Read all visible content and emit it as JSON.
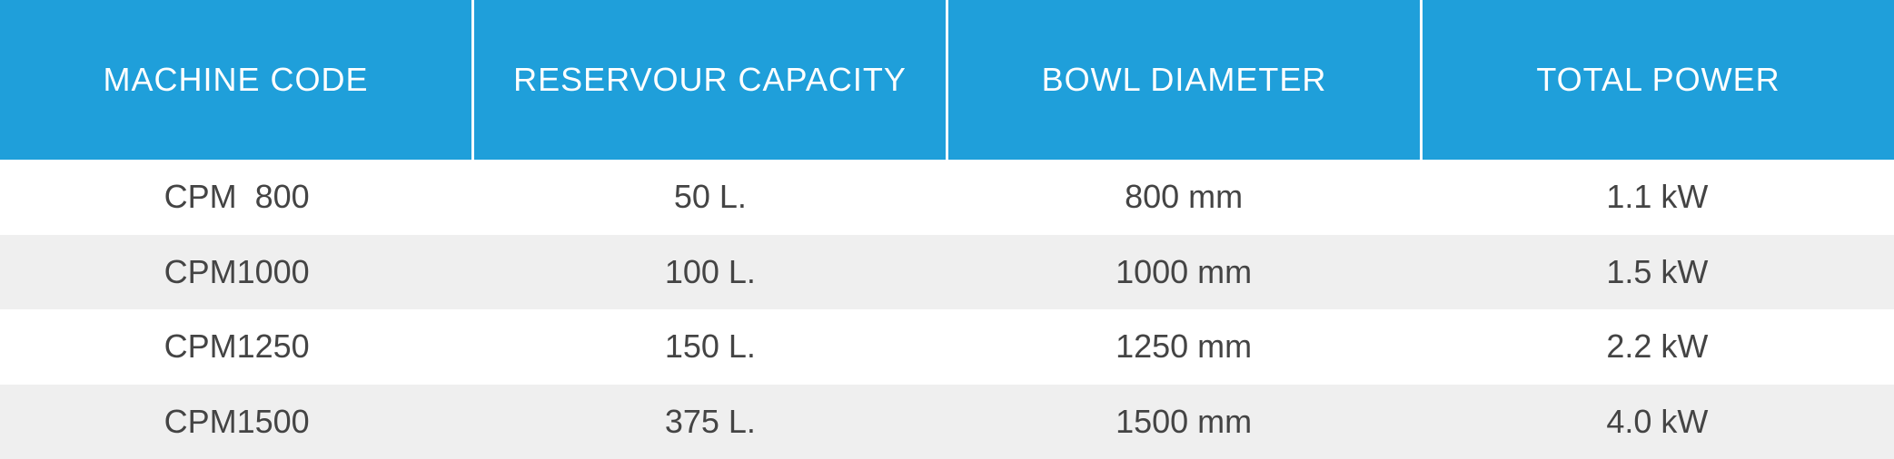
{
  "colors": {
    "header_bg": "#1f9fda",
    "header_text": "#ffffff",
    "row_alt_bg": "#efefef",
    "cell_text": "#444444"
  },
  "table": {
    "headers": [
      "MACHINE CODE",
      "RESERVOUR CAPACITY",
      "BOWL DIAMETER",
      "TOTAL POWER"
    ],
    "rows": [
      [
        "CPM  800",
        "50 L.",
        "800 mm",
        "1.1 kW"
      ],
      [
        "CPM1000",
        "100 L.",
        "1000 mm",
        "1.5 kW"
      ],
      [
        "CPM1250",
        "150 L.",
        "1250 mm",
        "2.2 kW"
      ],
      [
        "CPM1500",
        "375 L.",
        "1500 mm",
        "4.0 kW"
      ]
    ]
  }
}
